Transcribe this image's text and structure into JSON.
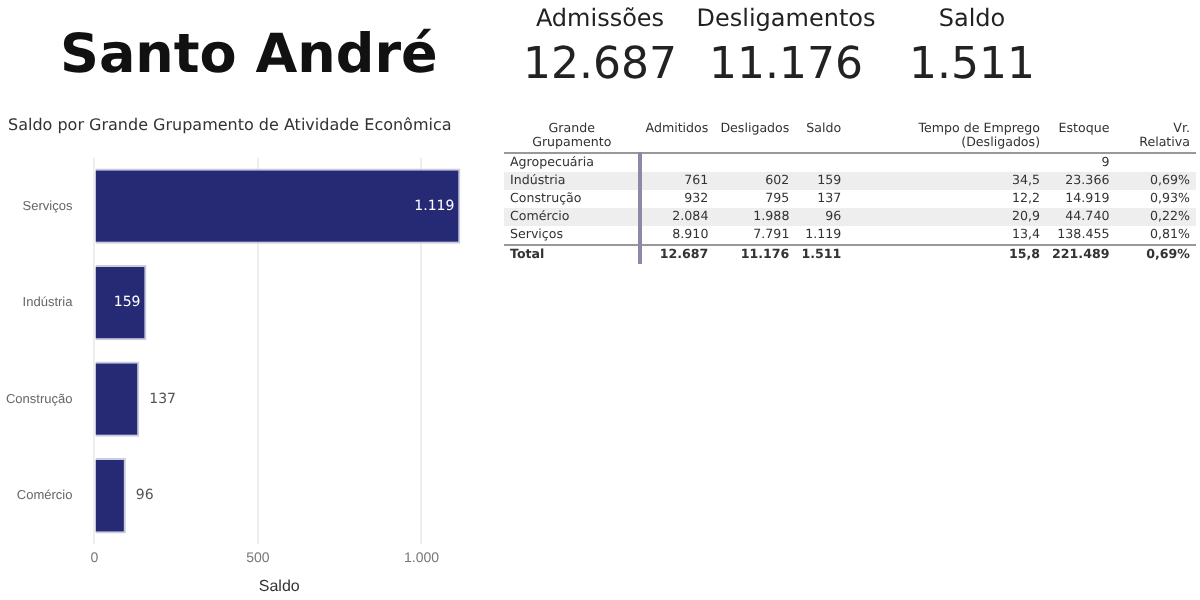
{
  "chart_data": [
    {
      "type": "other",
      "title": "Santo André",
      "categories": [
        "Admissões",
        "Desligamentos",
        "Saldo"
      ],
      "value_labels": [
        "12.687",
        "11.176",
        "1.511"
      ]
    },
    {
      "type": "bar",
      "orientation": "horizontal",
      "title": "Saldo por Grande Grupamento de Atividade Econômica",
      "xlabel": "Saldo",
      "categories": [
        "Serviços",
        "Indústria",
        "Construção",
        "Comércio"
      ],
      "values": [
        1119,
        159,
        137,
        96
      ],
      "value_labels": [
        "1.119",
        "159",
        "137",
        "96"
      ],
      "color": "#262a75",
      "xlim": [
        0,
        1130
      ],
      "xticks": [
        0,
        500,
        {
          "value": 1000,
          "label": "1.000"
        }
      ],
      "grid": "x"
    },
    {
      "type": "other",
      "ylabel": "Grande Grupamento",
      "categories": [
        "Admitidos",
        "Desligados",
        "Saldo",
        "Tempo de Emprego (Desligados)",
        "Estoque",
        "Vr. Relativa"
      ],
      "y_categories": [
        "Agropecuária",
        "Indústria",
        "Construção",
        "Comércio",
        "Serviços",
        "Total"
      ],
      "cell_labels": [
        [
          null,
          null,
          null,
          null,
          "9",
          null
        ],
        [
          "761",
          "602",
          "159",
          "34,5",
          "23.366",
          "0,69%"
        ],
        [
          "932",
          "795",
          "137",
          "12,2",
          "14.919",
          "0,93%"
        ],
        [
          "2.084",
          "1.988",
          "96",
          "20,9",
          "44.740",
          "0,22%"
        ],
        [
          "8.910",
          "7.791",
          "1.119",
          "13,4",
          "138.455",
          "0,81%"
        ],
        [
          "12.687",
          "11.176",
          "1.511",
          "15,8",
          "221.489",
          "0,69%"
        ]
      ]
    }
  ]
}
